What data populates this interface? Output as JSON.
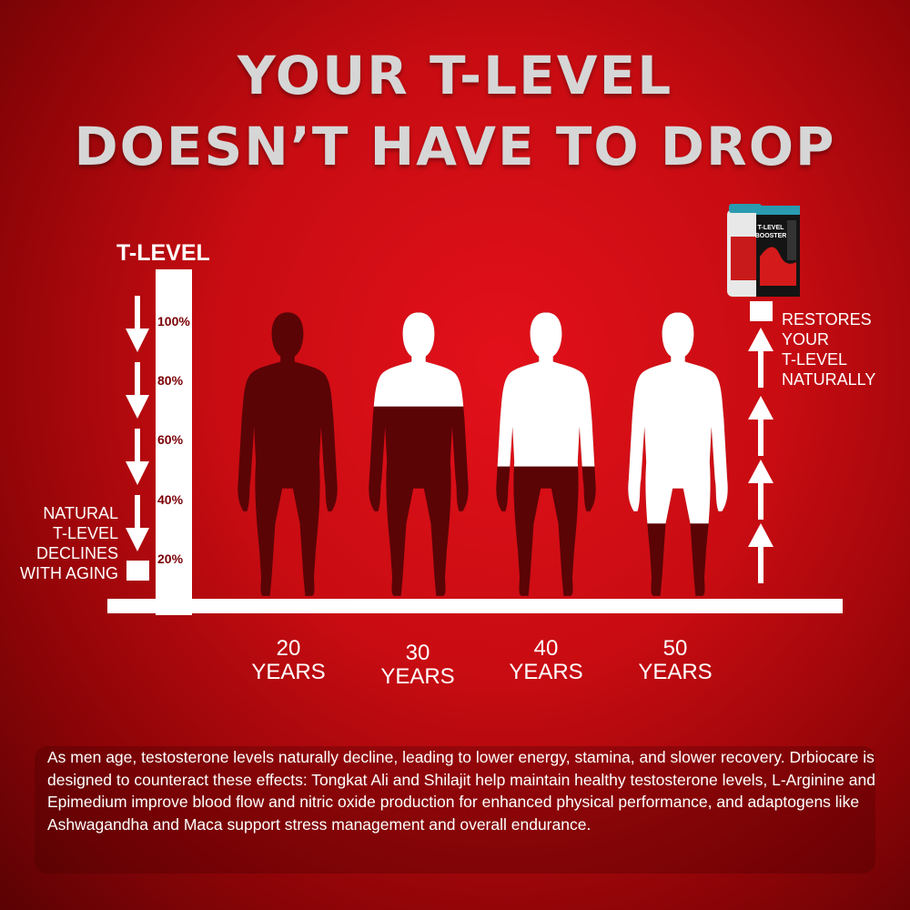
{
  "title": {
    "line1": "YOUR T-LEVEL",
    "line2": "DOESN’T HAVE TO DROP"
  },
  "axis": {
    "label": "T-LEVEL",
    "ticks": [
      "100%",
      "80%",
      "60%",
      "40%",
      "20%"
    ]
  },
  "left_note": {
    "lines": [
      "NATURAL",
      "T-LEVEL",
      "DECLINES",
      "WITH AGING"
    ]
  },
  "right_note": {
    "lines": [
      "RESTORES",
      "YOUR",
      "T-LEVEL",
      "NATURALLY"
    ]
  },
  "ages": [
    {
      "num": "20",
      "unit": "YEARS"
    },
    {
      "num": "30",
      "unit": "YEARS"
    },
    {
      "num": "40",
      "unit": "YEARS"
    },
    {
      "num": "50",
      "unit": "YEARS"
    }
  ],
  "figures": [
    {
      "name": "20-years",
      "white_fraction": 0.0
    },
    {
      "name": "30-years",
      "white_fraction": 0.33
    },
    {
      "name": "40-years",
      "white_fraction": 0.54
    },
    {
      "name": "50-years",
      "white_fraction": 0.74
    }
  ],
  "product": {
    "label_line1": "T-LEVEL",
    "label_line2": "BOOSTER"
  },
  "description": "As men age, testosterone levels naturally decline, leading to lower energy, stamina, and slower recovery. Drbiocare is designed to counteract these effects: Tongkat Ali and Shilajit help maintain healthy testosterone levels, L-Arginine and Epimedium improve blood flow and nitric oxide production for enhanced physical performance, and adaptogens like Ashwagandha and Maca support stress management and overall endurance.",
  "colors": {
    "dark_silhouette": "#5a0406",
    "white": "#ffffff",
    "accent_red": "#c80c12"
  }
}
